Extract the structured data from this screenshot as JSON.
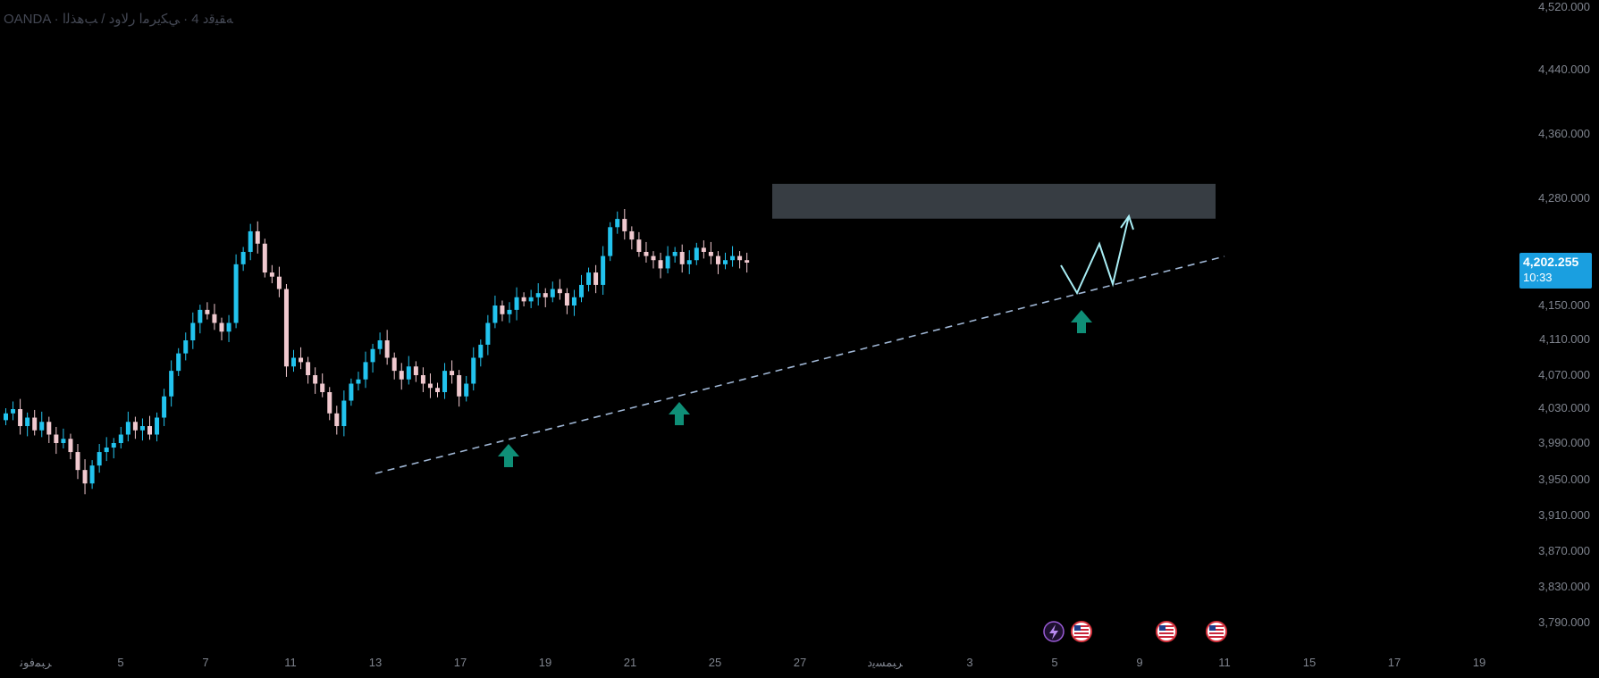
{
  "legend": {
    "broker": "OANDA",
    "separator": " · ",
    "symbol_text": "ﻪﻘﻴﻗﺩ 4 · ﻲﻜﻳﺮﻣﺍ ﺭﻻﻭﺩ / ﺐﻫﺬﻟﺍ"
  },
  "price_badge": {
    "price": "4,202.255",
    "countdown": "10:33"
  },
  "colors": {
    "up": "#22c3ee",
    "down": "#f0c9cf",
    "trendline": "#9fb6d4",
    "zone": "#3a4047",
    "projection": "#a9eef5",
    "arrow": "#0f8f77",
    "badge": "#1a9fe0"
  },
  "event_icons": [
    "lightning-event-icon",
    "us-flag-icon",
    "us-flag-icon",
    "us-flag-icon"
  ],
  "chart_data": {
    "type": "candlestick",
    "title": "",
    "y_axis": {
      "position": "right",
      "ticks": [
        3790,
        3830,
        3870,
        3910,
        3950,
        3990,
        4030,
        4070,
        4110,
        4150,
        4280,
        4360,
        4440,
        4520
      ],
      "tick_labels": [
        "3,790.000",
        "3,830.000",
        "3,870.000",
        "3,910.000",
        "3,950.000",
        "3,990.000",
        "4,030.000",
        "4,070.000",
        "4,110.000",
        "4,150.000",
        "4,280.000",
        "4,360.000",
        "4,440.000",
        "4,520.000"
      ]
    },
    "x_axis": {
      "tick_labels": [
        "ﺮﺒﻤﻓﻮﻧ",
        "5",
        "7",
        "11",
        "13",
        "17",
        "19",
        "21",
        "25",
        "27",
        "ﺮﺒﻤﺴﻳﺩ",
        "3",
        "5",
        "9",
        "11",
        "15",
        "17",
        "19"
      ]
    },
    "last_price": 4202.255,
    "resistance_zone": {
      "low": 4238,
      "high": 4278
    },
    "trendline": {
      "from": [
        "Nov 15",
        3955
      ],
      "to": [
        "Dec 11",
        4200
      ]
    },
    "projection_path": [
      4200,
      4165,
      4225,
      4178,
      4262
    ],
    "support_touches": [
      "Nov 18",
      "Nov 23",
      "Dec 6"
    ],
    "candle_closes_approx": [
      4025,
      4030,
      4010,
      4020,
      4005,
      4015,
      4000,
      3990,
      3995,
      3980,
      3960,
      3945,
      3965,
      3980,
      3985,
      3990,
      4000,
      4015,
      4005,
      4010,
      4000,
      4020,
      4045,
      4075,
      4095,
      4110,
      4130,
      4145,
      4140,
      4130,
      4120,
      4130,
      4200,
      4215,
      4240,
      4225,
      4190,
      4185,
      4170,
      4080,
      4090,
      4085,
      4070,
      4060,
      4050,
      4025,
      4010,
      4040,
      4060,
      4065,
      4085,
      4100,
      4110,
      4090,
      4075,
      4065,
      4080,
      4070,
      4060,
      4055,
      4050,
      4075,
      4070,
      4045,
      4060,
      4090,
      4105,
      4130,
      4150,
      4140,
      4145,
      4160,
      4155,
      4160,
      4165,
      4160,
      4170,
      4165,
      4150,
      4160,
      4175,
      4190,
      4175,
      4210,
      4245,
      4255,
      4240,
      4230,
      4215,
      4210,
      4205,
      4195,
      4210,
      4215,
      4200,
      4205,
      4220,
      4215,
      4210,
      4200,
      4205,
      4210,
      4205,
      4202
    ]
  }
}
